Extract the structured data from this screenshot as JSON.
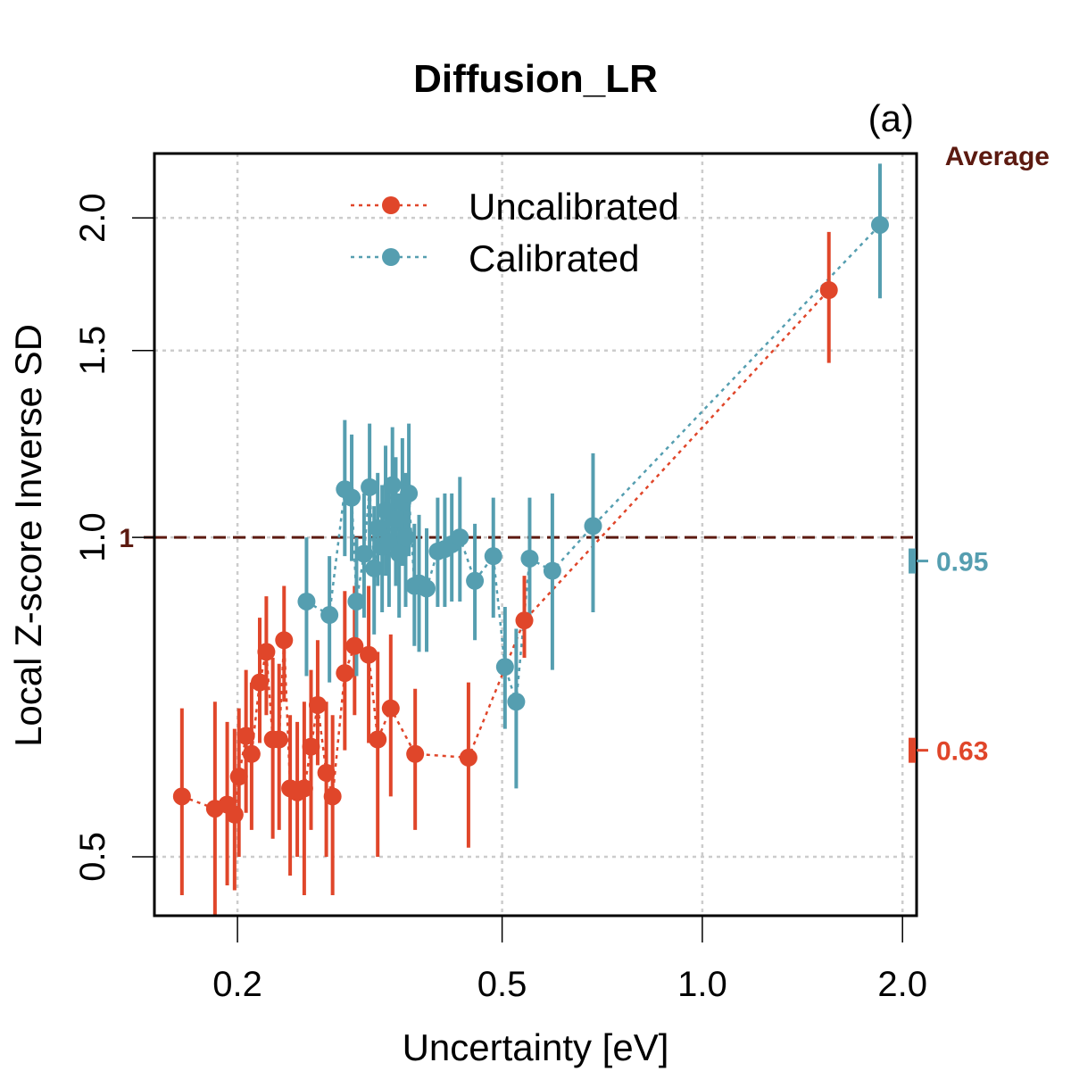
{
  "chart_data": {
    "type": "scatter",
    "title": "Diffusion_LR",
    "panel_label": "(a)",
    "xlabel": "Uncertainty [eV]",
    "ylabel": "Local Z-score Inverse SD",
    "x_scale": "log",
    "y_scale": "log",
    "xlim": [
      0.15,
      2.1
    ],
    "ylim": [
      0.44,
      2.3
    ],
    "x_ticks": [
      0.2,
      0.5,
      1.0,
      2.0
    ],
    "x_tick_labels": [
      "0.2",
      "0.5",
      "1.0",
      "2.0"
    ],
    "y_ticks": [
      0.5,
      1.0,
      1.5,
      2.0
    ],
    "y_tick_labels": [
      "0.5",
      "1.0",
      "1.5",
      "2.0"
    ],
    "grid": true,
    "reference_line": {
      "y": 1.0,
      "label": "1",
      "color": "#5C1A10"
    },
    "average_label": "Average",
    "average_color": "#5C1A10",
    "legend": {
      "position": "top-center",
      "entries": [
        "Uncalibrated",
        "Calibrated"
      ]
    },
    "series": [
      {
        "name": "Uncalibrated",
        "color": "#E0462A",
        "average": 0.63,
        "average_label": "0.63",
        "points": [
          {
            "x": 0.165,
            "y": 0.57,
            "lo": 0.46,
            "hi": 0.69
          },
          {
            "x": 0.185,
            "y": 0.555,
            "lo": 0.44,
            "hi": 0.7
          },
          {
            "x": 0.193,
            "y": 0.56,
            "lo": 0.47,
            "hi": 0.67
          },
          {
            "x": 0.198,
            "y": 0.548,
            "lo": 0.465,
            "hi": 0.66
          },
          {
            "x": 0.201,
            "y": 0.595,
            "lo": 0.5,
            "hi": 0.69
          },
          {
            "x": 0.206,
            "y": 0.65,
            "lo": 0.55,
            "hi": 0.75
          },
          {
            "x": 0.21,
            "y": 0.625,
            "lo": 0.53,
            "hi": 0.73
          },
          {
            "x": 0.216,
            "y": 0.73,
            "lo": 0.64,
            "hi": 0.84
          },
          {
            "x": 0.221,
            "y": 0.78,
            "lo": 0.68,
            "hi": 0.88
          },
          {
            "x": 0.226,
            "y": 0.645,
            "lo": 0.52,
            "hi": 0.77
          },
          {
            "x": 0.231,
            "y": 0.645,
            "lo": 0.53,
            "hi": 0.76
          },
          {
            "x": 0.235,
            "y": 0.8,
            "lo": 0.7,
            "hi": 0.9
          },
          {
            "x": 0.24,
            "y": 0.58,
            "lo": 0.48,
            "hi": 0.68
          },
          {
            "x": 0.246,
            "y": 0.575,
            "lo": 0.5,
            "hi": 0.67
          },
          {
            "x": 0.252,
            "y": 0.58,
            "lo": 0.46,
            "hi": 0.7
          },
          {
            "x": 0.258,
            "y": 0.635,
            "lo": 0.53,
            "hi": 0.75
          },
          {
            "x": 0.264,
            "y": 0.695,
            "lo": 0.61,
            "hi": 0.8
          },
          {
            "x": 0.272,
            "y": 0.6,
            "lo": 0.5,
            "hi": 0.7
          },
          {
            "x": 0.278,
            "y": 0.57,
            "lo": 0.46,
            "hi": 0.68
          },
          {
            "x": 0.29,
            "y": 0.745,
            "lo": 0.63,
            "hi": 0.89
          },
          {
            "x": 0.3,
            "y": 0.79,
            "lo": 0.68,
            "hi": 0.9
          },
          {
            "x": 0.315,
            "y": 0.775,
            "lo": 0.64,
            "hi": 0.9
          },
          {
            "x": 0.325,
            "y": 0.645,
            "lo": 0.5,
            "hi": 0.78
          },
          {
            "x": 0.34,
            "y": 0.69,
            "lo": 0.57,
            "hi": 0.81
          },
          {
            "x": 0.37,
            "y": 0.625,
            "lo": 0.53,
            "hi": 0.72
          },
          {
            "x": 0.445,
            "y": 0.62,
            "lo": 0.51,
            "hi": 0.73
          },
          {
            "x": 0.54,
            "y": 0.835,
            "lo": 0.77,
            "hi": 0.92
          },
          {
            "x": 1.55,
            "y": 1.71,
            "lo": 1.46,
            "hi": 1.94
          }
        ]
      },
      {
        "name": "Calibrated",
        "color": "#559EB0",
        "average": 0.95,
        "average_label": "0.95",
        "points": [
          {
            "x": 0.254,
            "y": 0.87,
            "lo": 0.74,
            "hi": 1.0
          },
          {
            "x": 0.275,
            "y": 0.845,
            "lo": 0.73,
            "hi": 0.96
          },
          {
            "x": 0.29,
            "y": 1.11,
            "lo": 0.96,
            "hi": 1.29
          },
          {
            "x": 0.297,
            "y": 1.09,
            "lo": 0.95,
            "hi": 1.25
          },
          {
            "x": 0.302,
            "y": 0.87,
            "lo": 0.74,
            "hi": 1.0
          },
          {
            "x": 0.31,
            "y": 0.965,
            "lo": 0.84,
            "hi": 1.1
          },
          {
            "x": 0.316,
            "y": 1.115,
            "lo": 0.96,
            "hi": 1.28
          },
          {
            "x": 0.321,
            "y": 0.935,
            "lo": 0.81,
            "hi": 1.07
          },
          {
            "x": 0.325,
            "y": 1.02,
            "lo": 0.9,
            "hi": 1.15
          },
          {
            "x": 0.33,
            "y": 0.98,
            "lo": 0.85,
            "hi": 1.12
          },
          {
            "x": 0.334,
            "y": 1.06,
            "lo": 0.92,
            "hi": 1.22
          },
          {
            "x": 0.338,
            "y": 0.99,
            "lo": 0.86,
            "hi": 1.13
          },
          {
            "x": 0.342,
            "y": 1.12,
            "lo": 0.98,
            "hi": 1.27
          },
          {
            "x": 0.346,
            "y": 1.04,
            "lo": 0.9,
            "hi": 1.19
          },
          {
            "x": 0.35,
            "y": 0.965,
            "lo": 0.84,
            "hi": 1.1
          },
          {
            "x": 0.354,
            "y": 1.08,
            "lo": 0.94,
            "hi": 1.24
          },
          {
            "x": 0.358,
            "y": 1.0,
            "lo": 0.86,
            "hi": 1.15
          },
          {
            "x": 0.362,
            "y": 1.1,
            "lo": 0.96,
            "hi": 1.28
          },
          {
            "x": 0.369,
            "y": 0.9,
            "lo": 0.79,
            "hi": 1.03
          },
          {
            "x": 0.375,
            "y": 0.905,
            "lo": 0.78,
            "hi": 1.05
          },
          {
            "x": 0.385,
            "y": 0.895,
            "lo": 0.78,
            "hi": 1.02
          },
          {
            "x": 0.4,
            "y": 0.97,
            "lo": 0.86,
            "hi": 1.09
          },
          {
            "x": 0.41,
            "y": 0.975,
            "lo": 0.86,
            "hi": 1.1
          },
          {
            "x": 0.42,
            "y": 0.985,
            "lo": 0.87,
            "hi": 1.1
          },
          {
            "x": 0.432,
            "y": 1.0,
            "lo": 0.87,
            "hi": 1.14
          },
          {
            "x": 0.455,
            "y": 0.91,
            "lo": 0.8,
            "hi": 1.03
          },
          {
            "x": 0.485,
            "y": 0.96,
            "lo": 0.84,
            "hi": 1.09
          },
          {
            "x": 0.505,
            "y": 0.755,
            "lo": 0.66,
            "hi": 0.86
          },
          {
            "x": 0.525,
            "y": 0.7,
            "lo": 0.58,
            "hi": 0.82
          },
          {
            "x": 0.55,
            "y": 0.955,
            "lo": 0.83,
            "hi": 1.09
          },
          {
            "x": 0.595,
            "y": 0.93,
            "lo": 0.75,
            "hi": 1.1
          },
          {
            "x": 0.685,
            "y": 1.025,
            "lo": 0.85,
            "hi": 1.2
          },
          {
            "x": 1.85,
            "y": 1.97,
            "lo": 1.68,
            "hi": 2.25
          }
        ]
      }
    ]
  }
}
